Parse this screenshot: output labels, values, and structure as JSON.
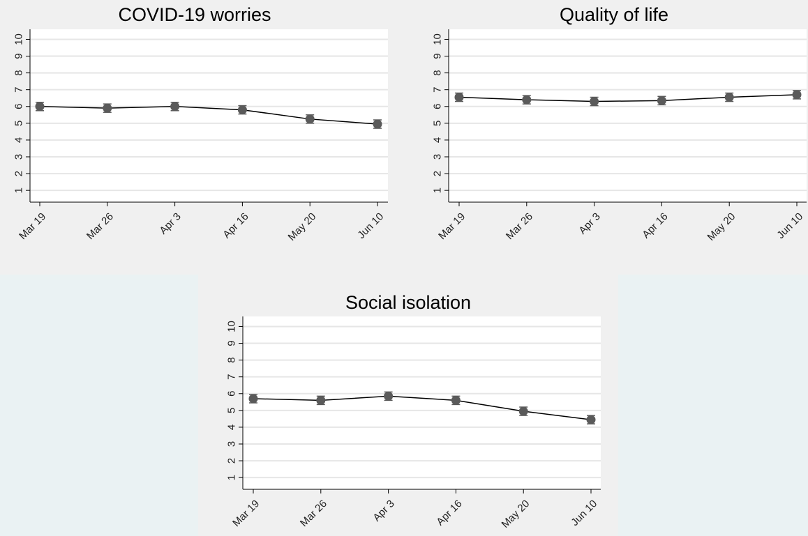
{
  "chart_data": [
    {
      "type": "line",
      "title": "COVID-19 worries",
      "categories": [
        "Mar 19",
        "Mar 26",
        "Apr 3",
        "Apr 16",
        "May 20",
        "Jun 10"
      ],
      "values": [
        6.0,
        5.9,
        6.0,
        5.8,
        5.25,
        4.95
      ],
      "error_low": [
        5.75,
        5.65,
        5.75,
        5.55,
        5.0,
        4.7
      ],
      "error_high": [
        6.25,
        6.15,
        6.25,
        6.05,
        5.5,
        5.2
      ],
      "yticks": [
        1,
        2,
        3,
        4,
        5,
        6,
        7,
        8,
        9,
        10
      ],
      "ylim": [
        0.3,
        10.6
      ],
      "grid": true
    },
    {
      "type": "line",
      "title": "Quality of life",
      "categories": [
        "Mar 19",
        "Mar 26",
        "Apr 3",
        "Apr 16",
        "May 20",
        "Jun 10"
      ],
      "values": [
        6.55,
        6.4,
        6.3,
        6.35,
        6.55,
        6.7
      ],
      "error_low": [
        6.3,
        6.15,
        6.05,
        6.1,
        6.3,
        6.45
      ],
      "error_high": [
        6.8,
        6.65,
        6.55,
        6.6,
        6.8,
        6.95
      ],
      "yticks": [
        1,
        2,
        3,
        4,
        5,
        6,
        7,
        8,
        9,
        10
      ],
      "ylim": [
        0.3,
        10.6
      ],
      "grid": true
    },
    {
      "type": "line",
      "title": "Social isolation",
      "categories": [
        "Mar 19",
        "Mar 26",
        "Apr 3",
        "Apr 16",
        "May 20",
        "Jun 10"
      ],
      "values": [
        5.7,
        5.6,
        5.85,
        5.6,
        4.95,
        4.45
      ],
      "error_low": [
        5.45,
        5.35,
        5.6,
        5.35,
        4.7,
        4.2
      ],
      "error_high": [
        5.95,
        5.85,
        6.1,
        5.85,
        5.2,
        4.7
      ],
      "yticks": [
        1,
        2,
        3,
        4,
        5,
        6,
        7,
        8,
        9,
        10
      ],
      "ylim": [
        0.3,
        10.6
      ],
      "grid": true
    }
  ],
  "colors": {
    "marker": "#5a5a5a",
    "line": "#000000",
    "grid": "#e6e6e6",
    "plot_bg": "#ffffff"
  }
}
